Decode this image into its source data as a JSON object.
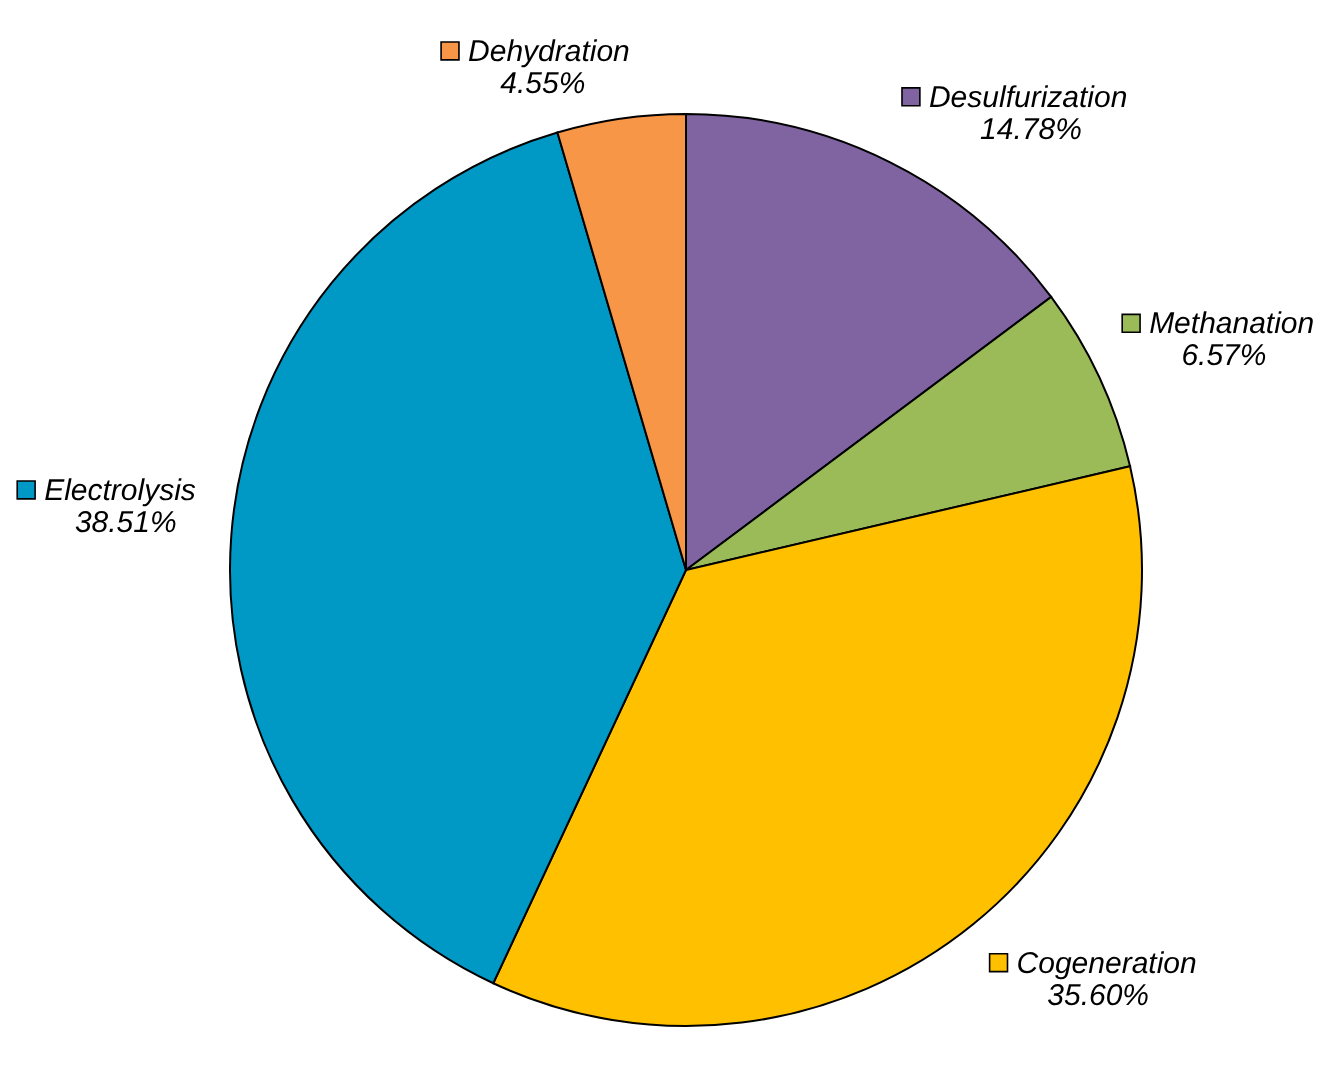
{
  "chart_data": {
    "type": "pie",
    "categories": [
      "Desulfurization",
      "Methanation",
      "Cogeneration",
      "Electrolysis",
      "Dehydration"
    ],
    "values": [
      14.78,
      6.57,
      35.6,
      38.51,
      4.55
    ],
    "value_labels": [
      "14.78%",
      "6.57%",
      "35.60%",
      "38.51%",
      "4.55%"
    ],
    "colors": [
      "#8064a2",
      "#9bbb59",
      "#ffc000",
      "#0099c6",
      "#f79646"
    ],
    "legend": "top right"
  }
}
